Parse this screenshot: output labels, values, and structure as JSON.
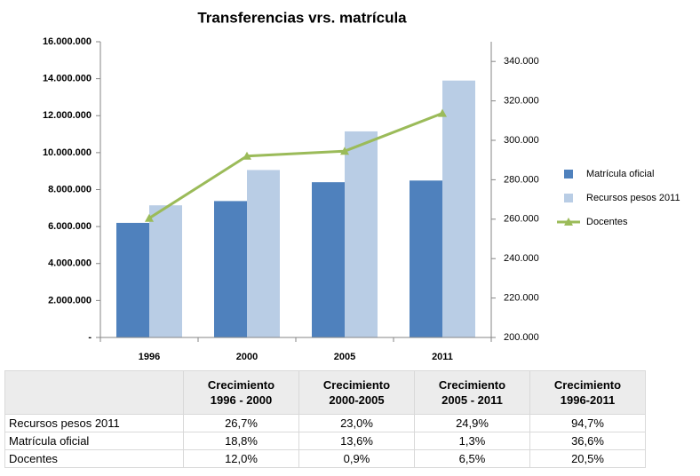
{
  "chart_data": {
    "type": "bar",
    "title": "Transferencias vrs. matrícula",
    "categories": [
      "1996",
      "2000",
      "2005",
      "2011"
    ],
    "series": [
      {
        "name": "Matrícula oficial",
        "color": "#4f81bd",
        "type": "bar",
        "values": [
          6200000,
          7380000,
          8400000,
          8490000
        ]
      },
      {
        "name": "Recursos pesos 2011",
        "color": "#b9cde5",
        "type": "bar",
        "values": [
          7150000,
          9060000,
          11150000,
          13900000
        ]
      },
      {
        "name": "Docentes",
        "color": "#9bbb59",
        "type": "line",
        "axis": "y2",
        "values": [
          260500,
          292000,
          294500,
          313700
        ]
      }
    ],
    "ylim": [
      0,
      16000000
    ],
    "yticks": [
      {
        "value": 0,
        "label": "-"
      },
      {
        "value": 2000000,
        "label": "2.000.000"
      },
      {
        "value": 4000000,
        "label": "4.000.000"
      },
      {
        "value": 6000000,
        "label": "6.000.000"
      },
      {
        "value": 8000000,
        "label": "8.000.000"
      },
      {
        "value": 10000000,
        "label": "10.000.000"
      },
      {
        "value": 12000000,
        "label": "12.000.000"
      },
      {
        "value": 14000000,
        "label": "14.000.000"
      },
      {
        "value": 16000000,
        "label": "16.000.000"
      }
    ],
    "y2lim": [
      200000,
      350000
    ],
    "y2ticks": [
      {
        "value": 200000,
        "label": "200.000"
      },
      {
        "value": 220000,
        "label": "220.000"
      },
      {
        "value": 240000,
        "label": "240.000"
      },
      {
        "value": 260000,
        "label": "260.000"
      },
      {
        "value": 280000,
        "label": "280.000"
      },
      {
        "value": 300000,
        "label": "300.000"
      },
      {
        "value": 320000,
        "label": "320.000"
      },
      {
        "value": 340000,
        "label": "340.000"
      }
    ],
    "legend": "right"
  },
  "table": {
    "columns": [
      "Crecimiento\n1996 - 2000",
      "Crecimiento\n2000-2005",
      "Crecimiento\n2005 - 2011",
      "Crecimiento\n1996-2011"
    ],
    "rows": [
      {
        "label": "Recursos pesos 2011",
        "values": [
          "26,7%",
          "23,0%",
          "24,9%",
          "94,7%"
        ]
      },
      {
        "label": "Matrícula oficial",
        "values": [
          "18,8%",
          "13,6%",
          "1,3%",
          "36,6%"
        ]
      },
      {
        "label": "Docentes",
        "values": [
          "12,0%",
          "0,9%",
          "6,5%",
          "20,5%"
        ]
      }
    ]
  }
}
